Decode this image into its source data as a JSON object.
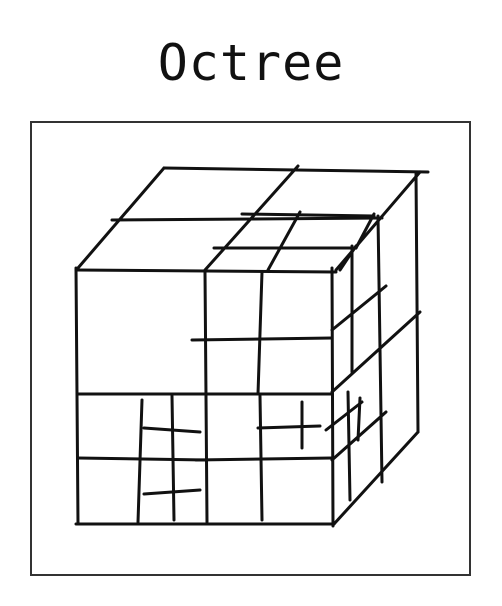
{
  "diagram": {
    "title": "Octree",
    "colors": {
      "ink": "#111111",
      "frame": "#333333",
      "background": "#ffffff"
    }
  }
}
